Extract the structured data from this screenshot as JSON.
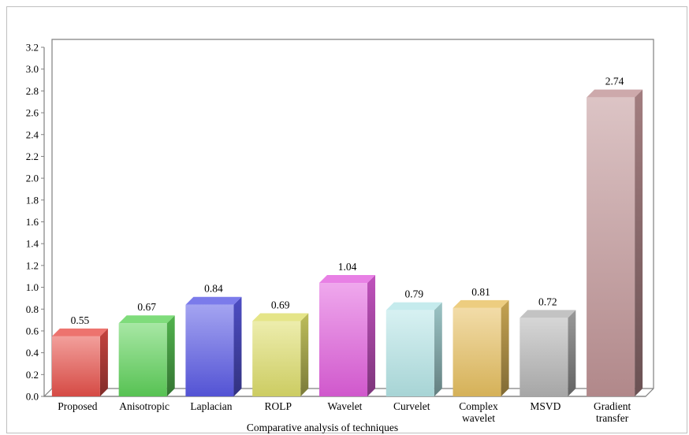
{
  "chart_data": {
    "type": "bar",
    "style": "3d-cylinder-column",
    "title": "",
    "xlabel": "Comparative analysis of techniques",
    "ylabel": "",
    "ylim": [
      0,
      3.2
    ],
    "ytick_step": 0.2,
    "ytick_labels": [
      "0.0",
      "0.2",
      "0.4",
      "0.6",
      "0.8",
      "1.0",
      "1.2",
      "1.4",
      "1.6",
      "1.8",
      "2.0",
      "2.2",
      "2.4",
      "2.6",
      "2.8",
      "3.0",
      "3.2"
    ],
    "grid": false,
    "legend": "none",
    "categories": [
      [
        "Proposed"
      ],
      [
        "Anisotropic"
      ],
      [
        "Laplacian"
      ],
      [
        "ROLP"
      ],
      [
        "Wavelet"
      ],
      [
        "Curvelet"
      ],
      [
        "Complex",
        "wavelet"
      ],
      [
        "MSVD"
      ],
      [
        "Gradient",
        "transfer"
      ]
    ],
    "values": [
      0.55,
      0.67,
      0.84,
      0.69,
      1.04,
      0.79,
      0.81,
      0.72,
      2.74
    ],
    "value_labels": [
      "0.55",
      "0.67",
      "0.84",
      "0.69",
      "1.04",
      "0.79",
      "0.81",
      "0.72",
      "2.74"
    ],
    "colors": [
      "#e8504a",
      "#5fd35a",
      "#5a5ae6",
      "#dede6a",
      "#e260de",
      "#b6e6e8",
      "#e8c060",
      "#b4b4b4",
      "#c09496"
    ]
  }
}
